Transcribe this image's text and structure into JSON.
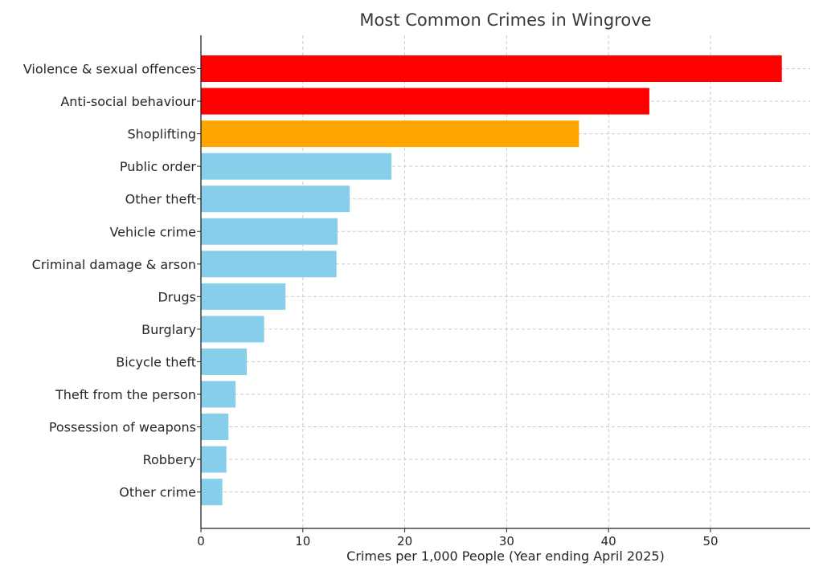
{
  "chart_data": {
    "type": "bar",
    "orientation": "horizontal",
    "title": "Most Common Crimes in Wingrove",
    "xlabel": "Crimes per 1,000 People (Year ending April 2025)",
    "ylabel": "",
    "xlim": [
      0,
      60
    ],
    "xticks": [
      0,
      10,
      20,
      30,
      40,
      50
    ],
    "grid": true,
    "categories": [
      "Violence & sexual offences",
      "Anti-social behaviour",
      "Shoplifting",
      "Public order",
      "Other theft",
      "Vehicle crime",
      "Criminal damage & arson",
      "Drugs",
      "Burglary",
      "Bicycle theft",
      "Theft from the person",
      "Possession of weapons",
      "Robbery",
      "Other crime"
    ],
    "values": [
      57.0,
      44.0,
      37.1,
      18.7,
      14.6,
      13.4,
      13.3,
      8.3,
      6.2,
      4.5,
      3.4,
      2.7,
      2.5,
      2.1
    ],
    "bar_colors": [
      "#ff0000",
      "#ff0000",
      "#ffa500",
      "#87ceeb",
      "#87ceeb",
      "#87ceeb",
      "#87ceeb",
      "#87ceeb",
      "#87ceeb",
      "#87ceeb",
      "#87ceeb",
      "#87ceeb",
      "#87ceeb",
      "#87ceeb"
    ]
  }
}
